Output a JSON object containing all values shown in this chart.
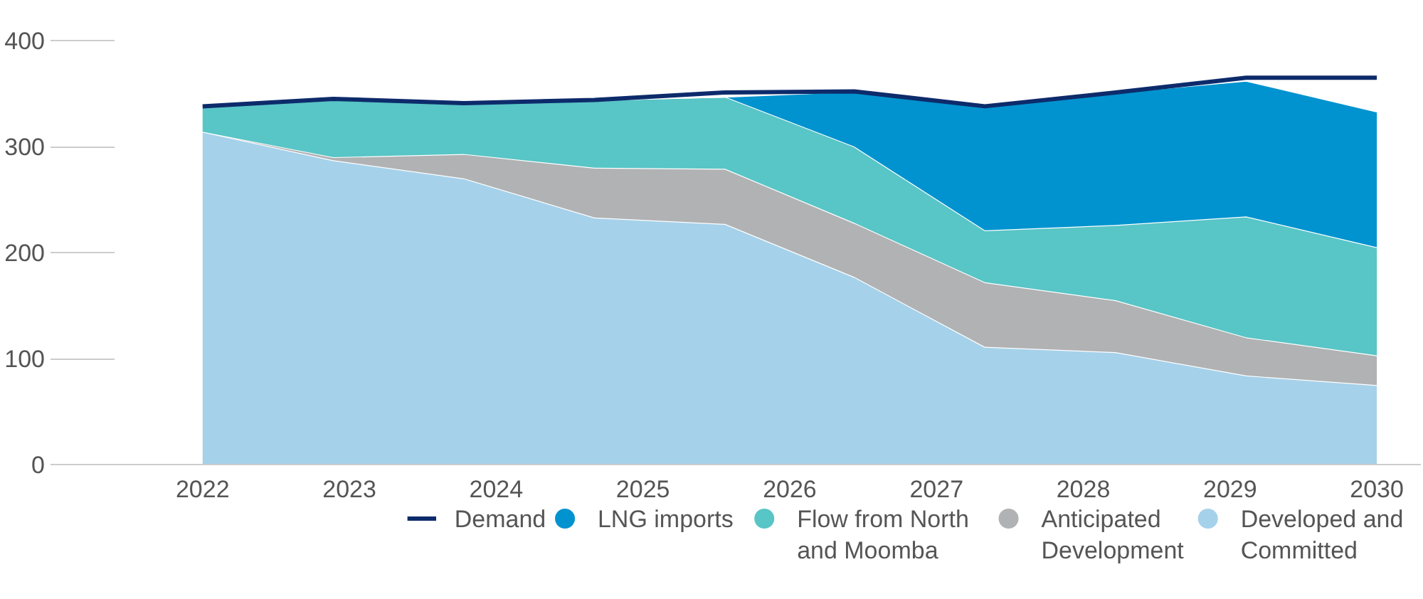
{
  "chart_data": {
    "type": "area",
    "stacked": true,
    "x": [
      2022,
      2022.89,
      2023.78,
      2024.67,
      2025.56,
      2026.44,
      2027.33,
      2028.22,
      2029.11,
      2030
    ],
    "xlim": [
      2021.4,
      2030.3
    ],
    "xticks": [
      2022,
      2023,
      2024,
      2025,
      2026,
      2027,
      2028,
      2029,
      2030
    ],
    "ylim": [
      0,
      400
    ],
    "yticks": [
      0,
      100,
      200,
      300,
      400
    ],
    "grid": false,
    "legend": "bottom",
    "series": [
      {
        "name": "Demand",
        "type": "line",
        "color": "#0d2b6b",
        "values": [
          338,
          345,
          341,
          344,
          351,
          352,
          338,
          351,
          365,
          365
        ]
      },
      {
        "name": "Developed and Committed",
        "color": "#a6d1ea",
        "values": [
          314,
          287,
          270,
          233,
          227,
          177,
          111,
          106,
          84,
          75
        ]
      },
      {
        "name": "Anticipated Development",
        "color": "#b0b2b4",
        "values": [
          0,
          3,
          23,
          47,
          52,
          51,
          61,
          49,
          36,
          28
        ]
      },
      {
        "name": "Flow from North and Moomba",
        "color": "#58c5c6",
        "values": [
          24,
          55,
          48,
          64,
          68,
          72,
          49,
          71,
          114,
          102
        ]
      },
      {
        "name": "LNG imports",
        "color": "#0093cf",
        "values": [
          0,
          0,
          0,
          0,
          0,
          52,
          117,
          125,
          128,
          128
        ]
      }
    ]
  }
}
